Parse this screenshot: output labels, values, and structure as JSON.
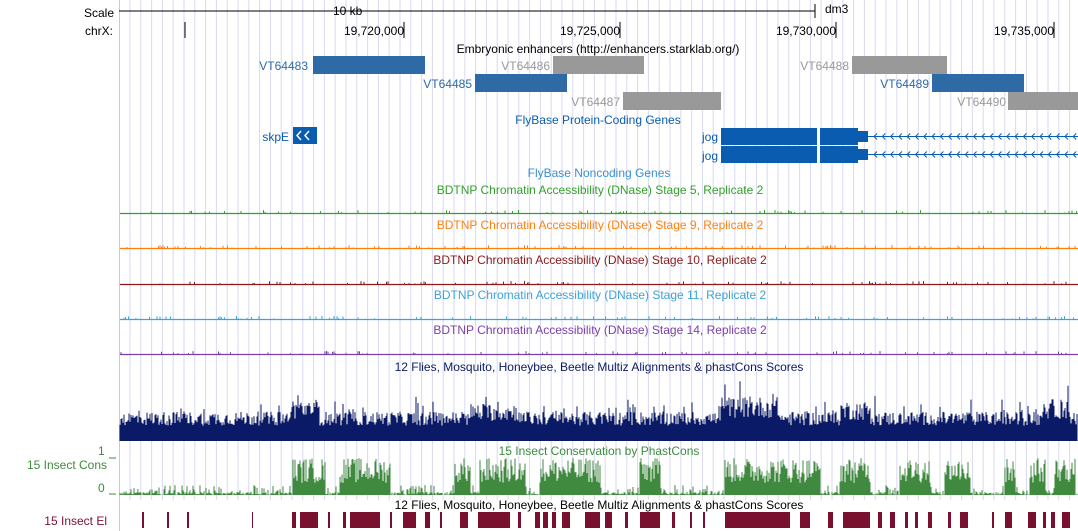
{
  "scale": {
    "label": "Scale",
    "bar_label": "10 kb",
    "assembly": "dm3"
  },
  "ruler": {
    "chrom": "chrX:",
    "ticks": [
      "19,720,000",
      "19,725,000",
      "19,730,000",
      "19,735,000"
    ]
  },
  "tracks": {
    "enhancers": {
      "title": "Embryonic enhancers (http://enhancers.starklab.org/)",
      "features": [
        {
          "name": "VT64483",
          "state": "active"
        },
        {
          "name": "VT64486",
          "state": "gray"
        },
        {
          "name": "VT64488",
          "state": "gray"
        },
        {
          "name": "VT64485",
          "state": "active"
        },
        {
          "name": "VT64489",
          "state": "active"
        },
        {
          "name": "VT64487",
          "state": "gray"
        },
        {
          "name": "VT64490",
          "state": "gray"
        }
      ]
    },
    "coding_genes": {
      "title": "FlyBase Protein-Coding Genes",
      "genes": [
        "skpE",
        "jog",
        "jog"
      ]
    },
    "noncoding": {
      "title": "FlyBase Noncoding Genes"
    },
    "dnase": [
      {
        "title": "BDTNP Chromatin Accessibility (DNase) Stage 5, Replicate 2",
        "color": "#33a02c"
      },
      {
        "title": "BDTNP Chromatin Accessibility (DNase) Stage 9, Replicate 2",
        "color": "#ff7f0e"
      },
      {
        "title": "BDTNP Chromatin Accessibility (DNase) Stage 10, Replicate 2",
        "color": "#8b1a1a"
      },
      {
        "title": "BDTNP Chromatin Accessibility (DNase) Stage 11, Replicate 2",
        "color": "#3ea3d6"
      },
      {
        "title": "BDTNP Chromatin Accessibility (DNase) Stage 14, Replicate 2",
        "color": "#7b3fa8"
      }
    ],
    "multiz": {
      "title": "12 Flies, Mosquito, Honeybee, Beetle Multiz Alignments & phastCons Scores"
    },
    "phastcons": {
      "side_label": "15 Insect Cons",
      "title": "15 Insect Conservation by PhastCons",
      "ymax": "1",
      "ymin": "0"
    },
    "elements": {
      "side_label": "15 Insect El",
      "title": "12 Flies, Mosquito, Honeybee, Beetle Multiz Alignments & phastCons Scores"
    }
  },
  "colors": {
    "enhancer_active": "#2e6aa6",
    "enhancer_gray": "#999999",
    "gene": "#0a5cb0",
    "multiz": "#0b1a66",
    "phastcons": "#3f8a3f",
    "elements": "#7a1030",
    "grid": "#d8d8f0"
  }
}
